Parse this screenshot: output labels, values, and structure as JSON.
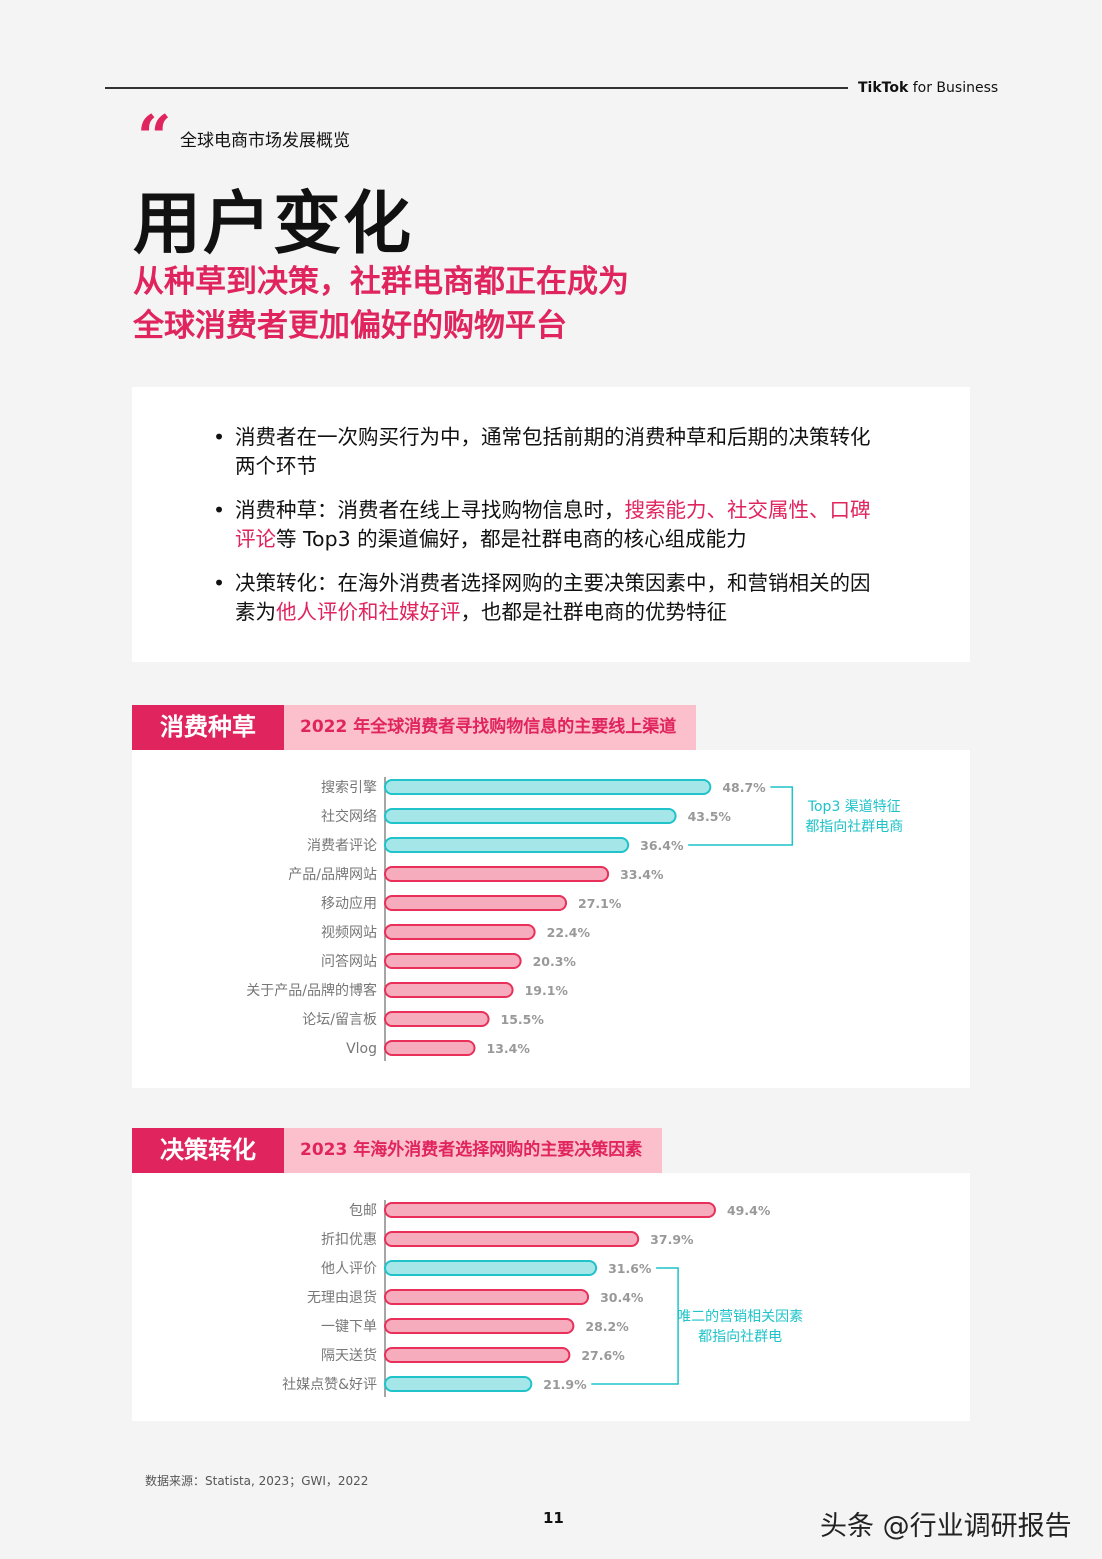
{
  "header": {
    "brand": "TikTok",
    "brand_suffix": "for Business"
  },
  "section": "全球电商市场发展概览",
  "title": "用户变化",
  "subtitle": [
    "从种草到决策，社群电商都正在成为",
    "全球消费者更加偏好的购物平台"
  ],
  "bullets": [
    [
      "消费者在一次购买行为中，通常包括前期的消费种草和后期的决策转化两个环节"
    ],
    [
      "消费种草：消费者在线上寻找购物信息时，",
      "搜索能力、社交属性、口碑评论",
      "等 Top3 的渠道偏好，都是社群电商的核心组成能力"
    ],
    [
      "决策转化：在海外消费者选择网购的主要决策因素中，和营销相关的因素为",
      "他人评价和社媒好评",
      "，也都是社群电商的优势特征"
    ]
  ],
  "chart_data": [
    {
      "type": "bar",
      "tag": "消费种草",
      "title": "2022 年全球消费者寻找购物信息的主要线上渠道",
      "categories": [
        "搜索引擎",
        "社交网络",
        "消费者评论",
        "产品/品牌网站",
        "移动应用",
        "视频网站",
        "问答网站",
        "关于产品/品牌的博客",
        "论坛/留言板",
        "Vlog"
      ],
      "values": [
        48.7,
        43.5,
        36.4,
        33.4,
        27.1,
        22.4,
        20.3,
        19.1,
        15.5,
        13.4
      ],
      "value_labels": [
        "48.7%",
        "43.5%",
        "36.4%",
        "33.4%",
        "27.1%",
        "22.4%",
        "20.3%",
        "19.1%",
        "15.5%",
        "13.4%"
      ],
      "colors": [
        "#1fc3c9",
        "#1fc3c9",
        "#1fc3c9",
        "#e8305a",
        "#e8305a",
        "#e8305a",
        "#e8305a",
        "#e8305a",
        "#e8305a",
        "#e8305a"
      ],
      "annotation": [
        "Top3 渠道特征",
        "都指向社群电商"
      ],
      "annotation_color": "#1fc3c9"
    },
    {
      "type": "bar",
      "tag": "决策转化",
      "title": "2023 年海外消费者选择网购的主要决策因素",
      "categories": [
        "包邮",
        "折扣优惠",
        "他人评价",
        "无理由退货",
        "一键下单",
        "隔天送货",
        "社媒点赞&好评"
      ],
      "values": [
        49.4,
        37.9,
        31.6,
        30.4,
        28.2,
        27.6,
        21.9
      ],
      "value_labels": [
        "49.4%",
        "37.9%",
        "31.6%",
        "30.4%",
        "28.2%",
        "27.6%",
        "21.9%"
      ],
      "colors": [
        "#e8305a",
        "#e8305a",
        "#1fc3c9",
        "#e8305a",
        "#e8305a",
        "#e8305a",
        "#1fc3c9"
      ],
      "annotation": [
        "唯二的营销相关因素",
        "都指向社群电"
      ],
      "annotation_color": "#1fc3c9"
    }
  ],
  "source": "数据来源：Statista, 2023；GWI，2022",
  "page_number": "11",
  "watermark": "头条 @行业调研报告"
}
